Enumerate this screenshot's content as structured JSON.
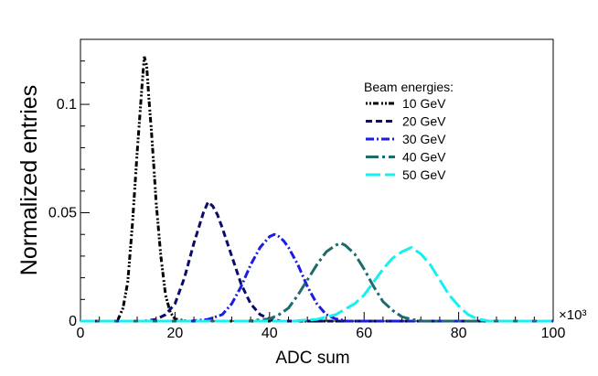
{
  "chart_data": {
    "type": "line",
    "xlabel": "ADC sum",
    "ylabel": "Normalized entries",
    "x_multiplier_label": "×10³",
    "xlim": [
      0,
      100
    ],
    "ylim": [
      0,
      0.13
    ],
    "x_ticks": [
      {
        "value": 0,
        "label": "0"
      },
      {
        "value": 20,
        "label": "20"
      },
      {
        "value": 40,
        "label": "40"
      },
      {
        "value": 60,
        "label": "60"
      },
      {
        "value": 80,
        "label": "80"
      },
      {
        "value": 100,
        "label": "100"
      }
    ],
    "y_ticks": [
      {
        "value": 0,
        "label": "0"
      },
      {
        "value": 0.05,
        "label": "0.05"
      },
      {
        "value": 0.1,
        "label": "0.1"
      }
    ],
    "legend": {
      "title": "Beam energies:",
      "placement": "top-right"
    },
    "series": [
      {
        "name": "10 GeV",
        "color": "#000000",
        "dash": "2,2,2,2,6,3",
        "x": [
          8,
          9,
          10,
          11,
          12,
          13,
          13.5,
          14,
          14.5,
          15,
          15.5,
          16,
          17,
          18,
          19,
          20,
          22
        ],
        "y": [
          0.001,
          0.006,
          0.018,
          0.045,
          0.078,
          0.108,
          0.122,
          0.118,
          0.102,
          0.088,
          0.072,
          0.055,
          0.03,
          0.012,
          0.004,
          0.001,
          0.0002
        ]
      },
      {
        "name": "20 GeV",
        "color": "#0b0b6b",
        "dash": "7,4",
        "x": [
          14,
          16,
          18,
          20,
          22,
          24,
          26,
          27,
          28,
          29,
          30,
          32,
          34,
          36,
          38,
          40,
          42
        ],
        "y": [
          0.0002,
          0.0008,
          0.003,
          0.008,
          0.02,
          0.036,
          0.05,
          0.055,
          0.053,
          0.049,
          0.043,
          0.03,
          0.017,
          0.008,
          0.003,
          0.001,
          0.0002
        ]
      },
      {
        "name": "30 GeV",
        "color": "#1c1ce6",
        "dash": "9,3,2,3",
        "x": [
          24,
          27,
          30,
          32,
          34,
          36,
          38,
          40,
          41,
          42,
          43,
          44,
          46,
          48,
          50,
          52,
          54,
          56
        ],
        "y": [
          0.0002,
          0.0008,
          0.003,
          0.008,
          0.016,
          0.026,
          0.034,
          0.039,
          0.04,
          0.039,
          0.037,
          0.034,
          0.026,
          0.016,
          0.008,
          0.003,
          0.001,
          0.0002
        ]
      },
      {
        "name": "40 GeV",
        "color": "#1d6b6b",
        "dash": "14,4,3,4",
        "x": [
          36,
          40,
          42,
          44,
          46,
          48,
          50,
          52,
          54,
          55,
          56,
          58,
          60,
          62,
          64,
          66,
          68,
          70,
          72
        ],
        "y": [
          0.0002,
          0.001,
          0.003,
          0.006,
          0.012,
          0.019,
          0.026,
          0.032,
          0.035,
          0.036,
          0.035,
          0.031,
          0.024,
          0.016,
          0.009,
          0.005,
          0.002,
          0.0008,
          0.0002
        ]
      },
      {
        "name": "50 GeV",
        "color": "#15f0f0",
        "dash": "16,5",
        "x": [
          46,
          50,
          54,
          58,
          60,
          62,
          64,
          66,
          68,
          69,
          70,
          72,
          74,
          76,
          78,
          80,
          82,
          84,
          86
        ],
        "y": [
          0.0002,
          0.0008,
          0.003,
          0.008,
          0.012,
          0.018,
          0.024,
          0.029,
          0.032,
          0.033,
          0.034,
          0.031,
          0.026,
          0.019,
          0.012,
          0.007,
          0.003,
          0.001,
          0.0002
        ]
      }
    ]
  }
}
